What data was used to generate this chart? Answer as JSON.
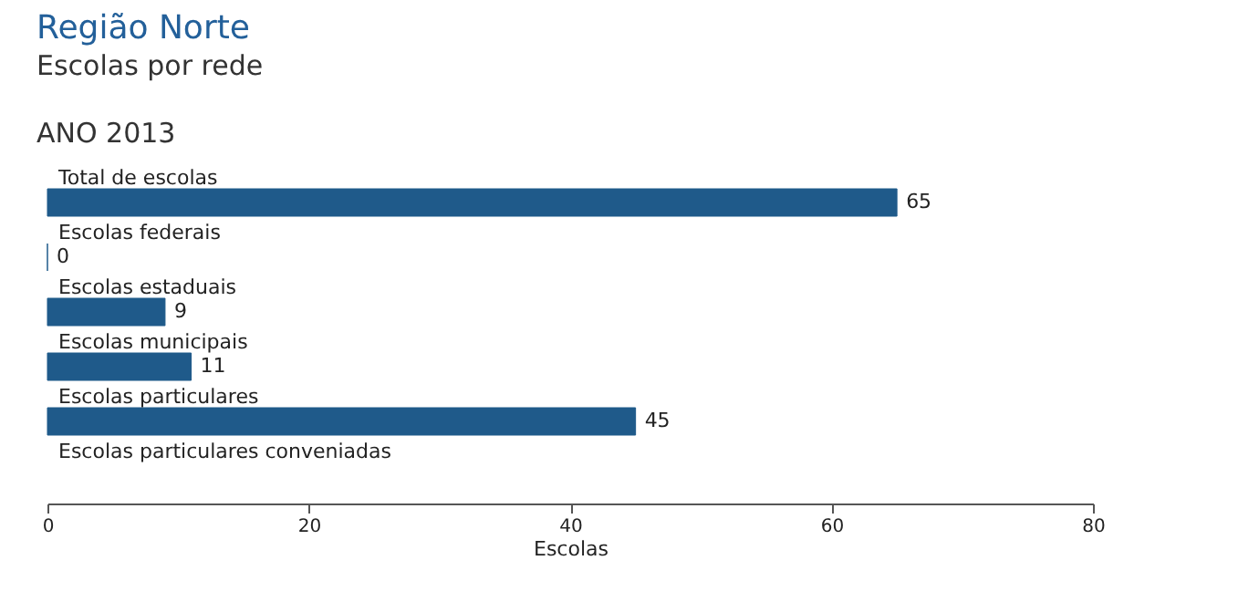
{
  "chart_data": {
    "type": "bar",
    "orientation": "horizontal",
    "title": "Região Norte",
    "subtitle": "Escolas por rede",
    "annotations": [
      "ANO 2013"
    ],
    "categories": [
      "Total de escolas",
      "Escolas federais",
      "Escolas estaduais",
      "Escolas municipais",
      "Escolas particulares",
      "Escolas particulares conveniadas"
    ],
    "values": [
      65,
      0,
      9,
      11,
      45,
      null
    ],
    "color": "#1f5a8a",
    "xlabel": "Escolas",
    "xlim": [
      0,
      80
    ],
    "xticks": [
      0,
      20,
      40,
      60,
      80
    ],
    "data_labels": true,
    "grid": false
  }
}
